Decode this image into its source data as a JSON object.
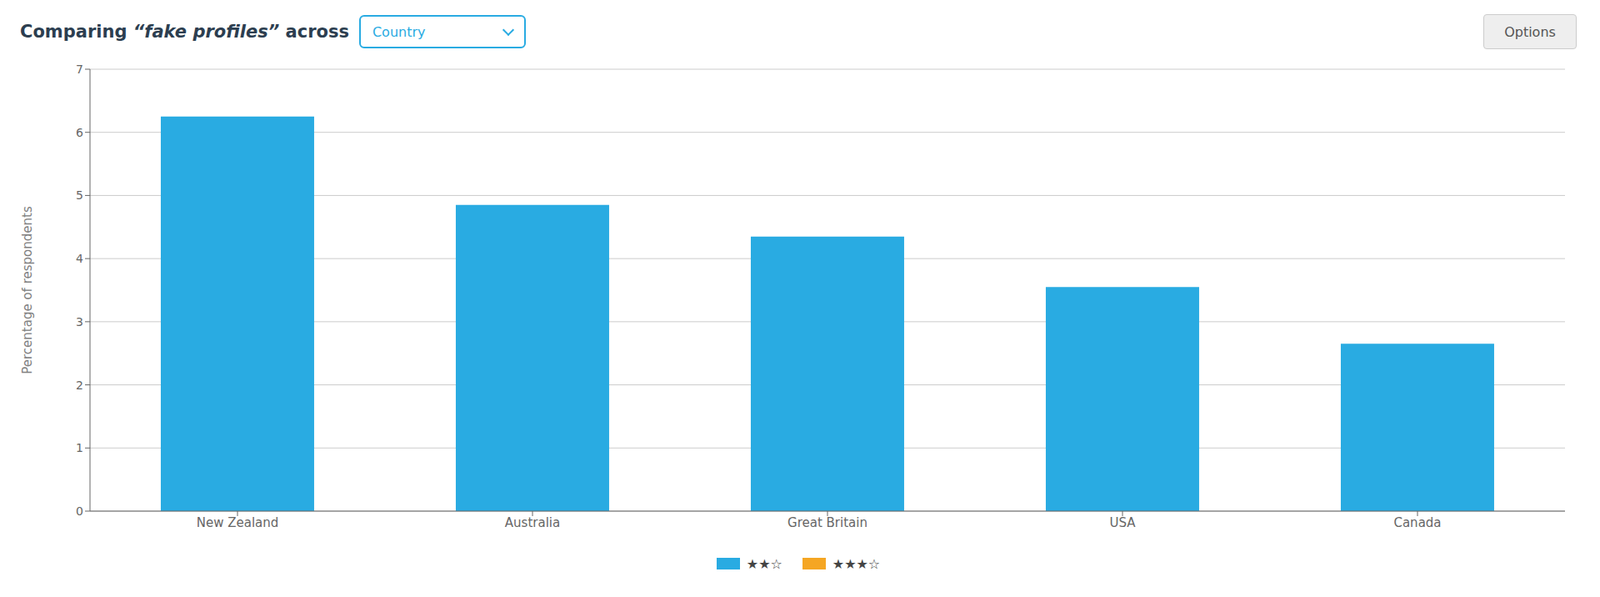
{
  "chart_data": {
    "type": "bar",
    "title": "Comparing “fake profiles” across",
    "ylabel": "Percentage of respondents",
    "annotations": [
      "Country",
      "Options"
    ],
    "categories": [
      "New Zealand",
      "Australia",
      "Great Britain",
      "USA",
      "Canada"
    ],
    "series": [
      {
        "name": "★★☆",
        "color": "#29ABE2",
        "values": [
          6.25,
          4.85,
          4.35,
          3.55,
          2.65
        ]
      },
      {
        "name": "★★★☆",
        "color": "#F5A623",
        "values": [
          null,
          null,
          null,
          null,
          null
        ]
      }
    ],
    "ylim": [
      0,
      7
    ],
    "yticks": [
      0,
      1,
      2,
      3,
      4,
      5,
      6,
      7
    ],
    "grid": true,
    "legend": "bottom"
  }
}
